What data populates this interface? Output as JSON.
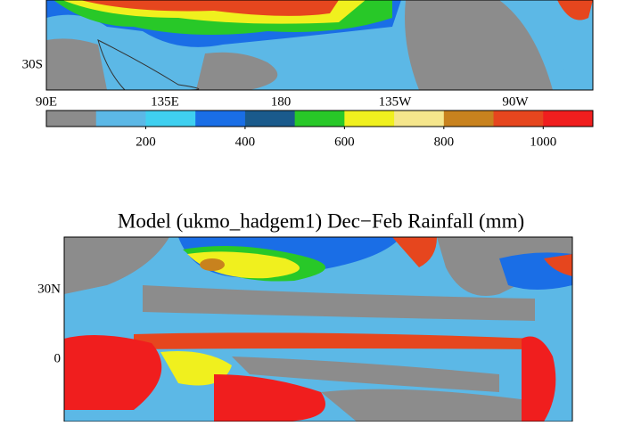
{
  "top_map": {
    "lat_labels": [
      "30S"
    ],
    "lon_labels": [
      "90E",
      "135E",
      "180",
      "135W",
      "90W"
    ]
  },
  "colorbar": {
    "range": [
      0,
      1100
    ],
    "ticks": [
      200,
      400,
      600,
      800,
      1000
    ],
    "colors": [
      "#8c8c8c",
      "#5cb8e6",
      "#3fd0f0",
      "#1a6ee6",
      "#1a5a8c",
      "#28c828",
      "#f0f01e",
      "#f5e68c",
      "#c8821e",
      "#e6461e",
      "#f01e1e"
    ]
  },
  "bottom_map": {
    "title": "Model (ukmo_hadgem1) Dec−Feb Rainfall (mm)",
    "lat_labels": [
      "30N",
      "0"
    ]
  }
}
